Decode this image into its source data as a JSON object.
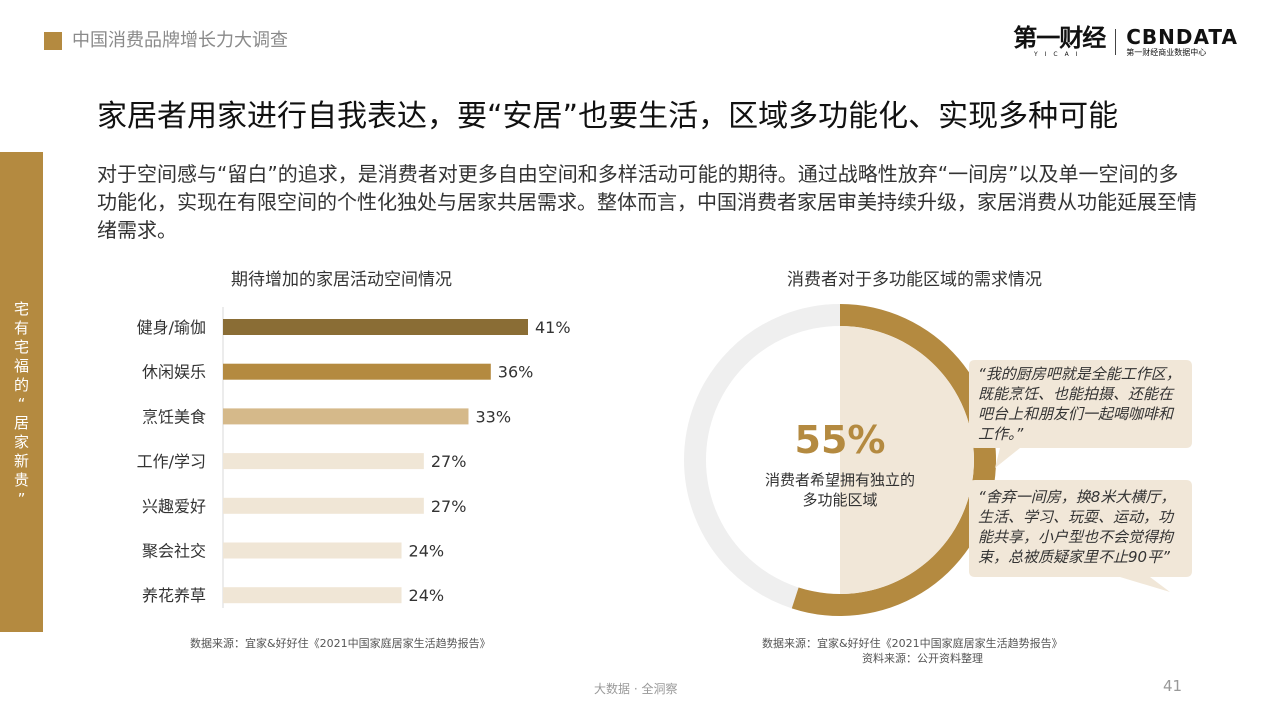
{
  "header": {
    "report_title": "中国消费品牌增长力大调查",
    "brand_yicai": "第一财经",
    "brand_yicai_sub": "YICAI",
    "brand_cbn": "CBNDATA",
    "brand_cbn_sub": "第一财经商业数据中心"
  },
  "main_title": "家居者用家进行自我表达，要“安居”也要生活，区域多功能化、实现多种可能",
  "intro": "对于空间感与“留白”的追求，是消费者对更多自由空间和多样活动可能的期待。通过战略性放弃“一间房”以及单一空间的多功能化，实现在有限空间的个性化独处与居家共居需求。整体而言，中国消费者家居审美持续升级，家居消费从功能延展至情绪需求。",
  "side_label": [
    "宅",
    "有",
    "宅",
    "福",
    "的",
    "“",
    "居",
    "家",
    "新",
    "贵",
    "”"
  ],
  "colors": {
    "accent": "#b48a40",
    "bar_dark": "#8a6d35",
    "bar_mid": "#b48a40",
    "bar_light": "#d5b98a",
    "bar_pale": "#f0e6d6",
    "donut_rest": "#efefef",
    "inner_fill": "#f1e7d8",
    "callout": "#f1e7d8"
  },
  "chart_data": [
    {
      "type": "bar",
      "orientation": "horizontal",
      "title": "期待增加的家居活动空间情况",
      "categories": [
        "健身/瑜伽",
        "休闲娱乐",
        "烹饪美食",
        "工作/学习",
        "兴趣爱好",
        "聚会社交",
        "养花养草"
      ],
      "values": [
        41,
        36,
        33,
        27,
        27,
        24,
        24
      ],
      "value_labels": [
        "41%",
        "36%",
        "33%",
        "27%",
        "27%",
        "24%",
        "24%"
      ],
      "unit": "%",
      "source": "数据来源：宜家&好好住《2021中国家庭居家生活趋势报告》"
    },
    {
      "type": "pie",
      "variant": "donut",
      "title": "消费者对于多功能区域的需求情况",
      "values": [
        55,
        45
      ],
      "center_value": "55%",
      "center_label": "消费者希望拥有独立的多功能区域",
      "quotes": [
        "“我的厨房吧就是全能工作区，既能烹饪、也能拍摄、还能在吧台上和朋友们一起喝咖啡和工作。”",
        "“舍弃一间房，换8米大横厅，生活、学习、玩耍、运动，功能共享，小户型也不会觉得拘束，总被质疑家里不止90平”"
      ],
      "source": "数据来源：宜家&好好住《2021中国家庭居家生活趋势报告》",
      "source_extra": "资料来源：公开资料整理"
    }
  ],
  "footer": {
    "tagline": "大数据 · 全洞察",
    "page_number": "41"
  }
}
